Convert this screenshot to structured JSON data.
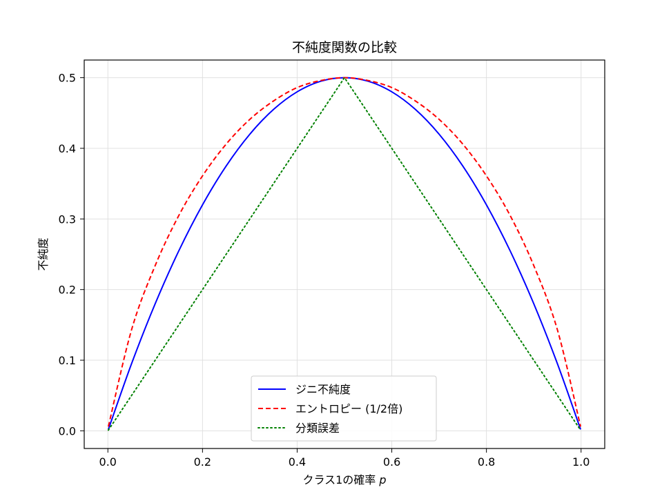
{
  "chart_data": {
    "type": "line",
    "title": "不純度関数の比較",
    "xlabel": "クラス1の確率",
    "xlabel_var": "p",
    "ylabel": "不純度",
    "xlim": [
      -0.05,
      1.05
    ],
    "ylim": [
      -0.025,
      0.525
    ],
    "x_ticks": [
      0.0,
      0.2,
      0.4,
      0.6,
      0.8,
      1.0
    ],
    "x_tick_labels": [
      "0.0",
      "0.2",
      "0.4",
      "0.6",
      "0.8",
      "1.0"
    ],
    "y_ticks": [
      0.0,
      0.1,
      0.2,
      0.3,
      0.4,
      0.5
    ],
    "y_tick_labels": [
      "0.0",
      "0.1",
      "0.2",
      "0.3",
      "0.4",
      "0.5"
    ],
    "grid": true,
    "legend_position": "lower center",
    "x": [
      0.001,
      0.05,
      0.1,
      0.15,
      0.2,
      0.25,
      0.3,
      0.35,
      0.4,
      0.45,
      0.5,
      0.55,
      0.6,
      0.65,
      0.7,
      0.75,
      0.8,
      0.85,
      0.9,
      0.95,
      0.999
    ],
    "series": [
      {
        "name": "ジニ不純度",
        "color": "#0000ff",
        "line_style": "solid",
        "values": [
          0.002,
          0.095,
          0.18,
          0.255,
          0.32,
          0.375,
          0.42,
          0.455,
          0.48,
          0.495,
          0.5,
          0.495,
          0.48,
          0.455,
          0.42,
          0.375,
          0.32,
          0.255,
          0.18,
          0.095,
          0.002
        ]
      },
      {
        "name": "エントロピー (1/2倍)",
        "color": "#ff0000",
        "line_style": "dashed",
        "values": [
          0.006,
          0.143,
          0.234,
          0.305,
          0.361,
          0.406,
          0.441,
          0.467,
          0.486,
          0.496,
          0.5,
          0.496,
          0.486,
          0.467,
          0.441,
          0.406,
          0.361,
          0.305,
          0.234,
          0.143,
          0.006
        ]
      },
      {
        "name": "分類誤差",
        "color": "#008000",
        "line_style": "dotted",
        "values": [
          0.001,
          0.05,
          0.1,
          0.15,
          0.2,
          0.25,
          0.3,
          0.35,
          0.4,
          0.45,
          0.5,
          0.45,
          0.4,
          0.35,
          0.3,
          0.25,
          0.2,
          0.15,
          0.1,
          0.05,
          0.001
        ]
      }
    ]
  }
}
